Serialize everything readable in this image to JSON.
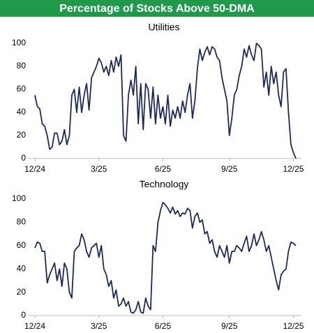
{
  "title": "Percentage of Stocks Above 50-DMA",
  "chart_data": [
    {
      "type": "line",
      "title": "Utilities",
      "x": [
        0,
        1,
        2,
        3,
        4,
        5,
        6,
        7,
        8,
        9,
        10,
        11,
        12,
        13,
        14,
        15,
        16,
        17,
        18,
        19,
        20,
        21,
        22,
        23,
        24,
        25,
        26,
        27,
        28,
        29,
        30,
        31,
        32,
        33,
        34,
        35,
        36,
        37,
        38,
        39,
        40,
        41,
        42,
        43,
        44,
        45,
        46,
        47,
        48,
        49,
        50,
        51,
        52,
        53,
        54,
        55,
        56,
        57,
        58,
        59,
        60,
        61,
        62,
        63,
        64,
        65,
        66,
        67,
        68,
        69,
        70,
        71,
        72,
        73,
        74,
        75,
        76,
        77,
        78,
        79,
        80,
        81,
        82,
        83,
        84,
        85,
        86,
        87,
        88,
        89,
        90,
        91,
        92,
        93,
        94,
        95,
        96,
        97,
        98,
        99,
        100,
        101,
        102,
        103,
        104,
        105,
        106
      ],
      "series": [
        {
          "name": "Utilities",
          "color": "#1c2a5c",
          "values": [
            55,
            45,
            43,
            30,
            28,
            20,
            8,
            10,
            22,
            22,
            12,
            15,
            25,
            12,
            20,
            55,
            60,
            40,
            62,
            40,
            55,
            65,
            42,
            70,
            75,
            80,
            87,
            83,
            75,
            80,
            72,
            85,
            75,
            88,
            80,
            90,
            20,
            15,
            55,
            68,
            55,
            80,
            30,
            65,
            25,
            65,
            60,
            35,
            62,
            30,
            55,
            35,
            45,
            30,
            55,
            28,
            42,
            35,
            45,
            35,
            50,
            40,
            55,
            65,
            35,
            50,
            78,
            95,
            85,
            92,
            97,
            90,
            97,
            95,
            88,
            85,
            70,
            60,
            50,
            20,
            35,
            55,
            60,
            72,
            80,
            95,
            88,
            98,
            90,
            85,
            100,
            98,
            95,
            62,
            75,
            55,
            80,
            65,
            75,
            55,
            45,
            75,
            78,
            40,
            12,
            5,
            0
          ]
        }
      ],
      "xlim": [
        0,
        106
      ],
      "xticks": [
        {
          "value": 0,
          "label": "12/24"
        },
        {
          "value": 26,
          "label": "3/25"
        },
        {
          "value": 52,
          "label": "6/25"
        },
        {
          "value": 79,
          "label": "9/25"
        },
        {
          "value": 105,
          "label": "12/25"
        }
      ],
      "ylim": [
        0,
        100
      ],
      "yticks": [
        0,
        20,
        40,
        60,
        80,
        100
      ],
      "grid": false
    },
    {
      "type": "line",
      "title": "Technology",
      "x": [
        0,
        1,
        2,
        3,
        4,
        5,
        6,
        7,
        8,
        9,
        10,
        11,
        12,
        13,
        14,
        15,
        16,
        17,
        18,
        19,
        20,
        21,
        22,
        23,
        24,
        25,
        26,
        27,
        28,
        29,
        30,
        31,
        32,
        33,
        34,
        35,
        36,
        37,
        38,
        39,
        40,
        41,
        42,
        43,
        44,
        45,
        46,
        47,
        48,
        49,
        50,
        51,
        52,
        53,
        54,
        55,
        56,
        57,
        58,
        59,
        60,
        61,
        62,
        63,
        64,
        65,
        66,
        67,
        68,
        69,
        70,
        71,
        72,
        73,
        74,
        75,
        76,
        77,
        78,
        79,
        80,
        81,
        82,
        83,
        84,
        85,
        86,
        87,
        88,
        89,
        90,
        91,
        92,
        93,
        94,
        95,
        96,
        97,
        98,
        99,
        100,
        101,
        102,
        103,
        104,
        105,
        106
      ],
      "series": [
        {
          "name": "Technology",
          "color": "#1c2a5c",
          "values": [
            58,
            63,
            62,
            55,
            55,
            28,
            35,
            40,
            45,
            30,
            40,
            25,
            45,
            40,
            20,
            15,
            55,
            58,
            60,
            70,
            65,
            55,
            50,
            58,
            60,
            62,
            50,
            60,
            40,
            35,
            25,
            30,
            15,
            22,
            8,
            10,
            15,
            8,
            12,
            3,
            2,
            5,
            12,
            3,
            2,
            15,
            8,
            5,
            60,
            55,
            80,
            90,
            97,
            95,
            92,
            88,
            93,
            87,
            90,
            85,
            88,
            87,
            92,
            90,
            75,
            85,
            88,
            80,
            82,
            70,
            72,
            62,
            65,
            55,
            50,
            60,
            55,
            50,
            60,
            45,
            55,
            55,
            60,
            58,
            55,
            62,
            68,
            55,
            60,
            70,
            60,
            65,
            72,
            65,
            55,
            60,
            50,
            40,
            30,
            22,
            35,
            38,
            40,
            55,
            63,
            62,
            60
          ]
        }
      ],
      "xlim": [
        0,
        106
      ],
      "xticks": [
        {
          "value": 0,
          "label": "12/24"
        },
        {
          "value": 26,
          "label": "3/25"
        },
        {
          "value": 52,
          "label": "6/25"
        },
        {
          "value": 79,
          "label": "9/25"
        },
        {
          "value": 105,
          "label": "12/25"
        }
      ],
      "ylim": [
        0,
        100
      ],
      "yticks": [
        0,
        20,
        40,
        60,
        80,
        100
      ],
      "grid": false
    }
  ]
}
